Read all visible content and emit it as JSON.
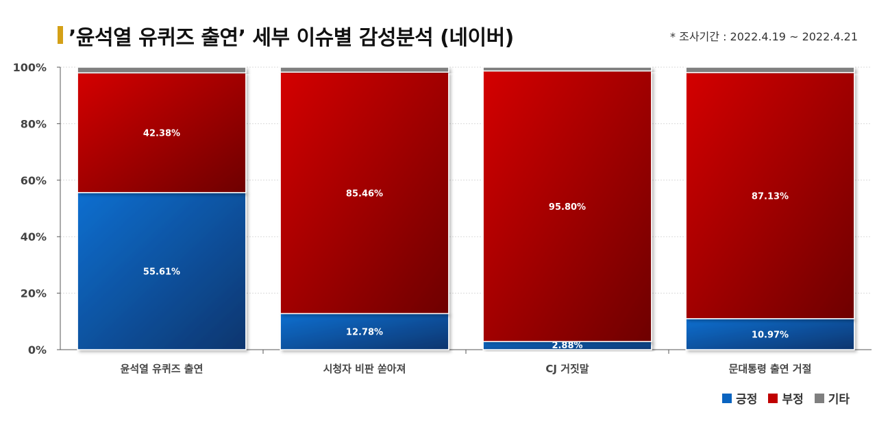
{
  "title": "’윤석열 유퀴즈 출연’ 세부 이슈별 감성분석 (네이버)",
  "note": "* 조사기간 : 2022.4.19 ~ 2022.4.21",
  "colors": {
    "positive": "#0a64c0",
    "negative": "#c00000",
    "other": "#7f7f7f",
    "title_accent": "#d4a017"
  },
  "chart_data": {
    "type": "bar",
    "stacked": true,
    "categories": [
      "윤석열 유퀴즈 출연",
      "시청자 비판 쏟아져",
      "CJ 거짓말",
      "문대통령 출연 거절"
    ],
    "series": [
      {
        "name": "긍정",
        "values": [
          55.61,
          12.78,
          2.88,
          10.97
        ],
        "labels": [
          "55.61%",
          "12.78%",
          "2.88%",
          "10.97%"
        ]
      },
      {
        "name": "부정",
        "values": [
          42.38,
          85.46,
          95.8,
          87.13
        ],
        "labels": [
          "42.38%",
          "85.46%",
          "95.80%",
          "87.13%"
        ]
      },
      {
        "name": "기타",
        "values": [
          2.01,
          1.76,
          1.32,
          1.9
        ]
      }
    ],
    "ylim": [
      0,
      100
    ],
    "yticks": [
      "0%",
      "20%",
      "40%",
      "60%",
      "80%",
      "100%"
    ],
    "grid": true,
    "legend": "bottom-right"
  }
}
